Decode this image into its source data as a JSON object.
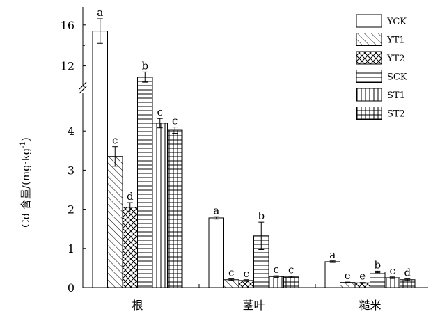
{
  "chart_data": {
    "type": "bar",
    "title": "",
    "xlabel": "",
    "ylabel": "Cd 含量/(mg·kg",
    "ylabel_superscript": "-1",
    "ylabel_close": ")",
    "axis_break": true,
    "lower_ylim": [
      0,
      5
    ],
    "upper_ylim": [
      10,
      18
    ],
    "lower_ticks": [
      0,
      1,
      2,
      3,
      4
    ],
    "upper_ticks": [
      12,
      16
    ],
    "categories": [
      "根",
      "茎叶",
      "糙米"
    ],
    "legend_position": "top-right",
    "series": [
      {
        "name": "YCK",
        "pattern": "none",
        "values": [
          15.4,
          1.78,
          0.66
        ],
        "errors": [
          1.2,
          0.03,
          0.02
        ],
        "labels": [
          "a",
          "a",
          "a"
        ]
      },
      {
        "name": "YT1",
        "pattern": "diagonal",
        "values": [
          3.35,
          0.2,
          0.13
        ],
        "errors": [
          0.25,
          0.02,
          0.01
        ],
        "labels": [
          "c",
          "c",
          "e"
        ]
      },
      {
        "name": "YT2",
        "pattern": "crosshatch",
        "values": [
          2.05,
          0.18,
          0.12
        ],
        "errors": [
          0.12,
          0.02,
          0.01
        ],
        "labels": [
          "d",
          "c",
          "e"
        ]
      },
      {
        "name": "SCK",
        "pattern": "horizontal",
        "values": [
          10.9,
          1.32,
          0.4
        ],
        "errors": [
          0.5,
          0.35,
          0.02
        ],
        "labels": [
          "b",
          "b",
          "b"
        ]
      },
      {
        "name": "ST1",
        "pattern": "vertical",
        "values": [
          4.2,
          0.28,
          0.25
        ],
        "errors": [
          0.12,
          0.02,
          0.02
        ],
        "labels": [
          "c",
          "c",
          "c"
        ]
      },
      {
        "name": "ST2",
        "pattern": "grid",
        "values": [
          4.02,
          0.27,
          0.2
        ],
        "errors": [
          0.08,
          0.02,
          0.02
        ],
        "labels": [
          "c",
          "c",
          "d"
        ]
      }
    ]
  }
}
